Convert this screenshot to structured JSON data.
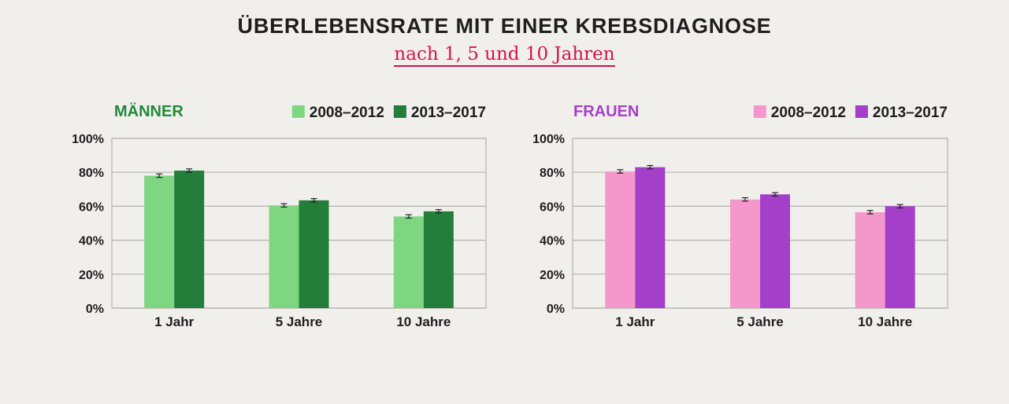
{
  "header": {
    "title": "ÜBERLEBENSRATE MIT EINER KREBSDIAGNOSE",
    "subtitle": "nach 1, 5 und 10 Jahren"
  },
  "chart_data": [
    {
      "type": "bar",
      "title": "MÄNNER",
      "title_color": "#218a3a",
      "categories": [
        "1 Jahr",
        "5 Jahre",
        "10 Jahre"
      ],
      "series": [
        {
          "name": "2008–2012",
          "color": "#7fd681",
          "values": [
            78,
            60.5,
            54
          ]
        },
        {
          "name": "2013–2017",
          "color": "#237e39",
          "values": [
            81,
            63.5,
            57
          ]
        }
      ],
      "error_margin": 1,
      "yticks": [
        "0%",
        "20%",
        "40%",
        "60%",
        "80%",
        "100%"
      ],
      "ylim": [
        0,
        100
      ],
      "grid": true,
      "legend": "top-right"
    },
    {
      "type": "bar",
      "title": "FRAUEN",
      "title_color": "#a63fc8",
      "categories": [
        "1 Jahr",
        "5 Jahre",
        "10 Jahre"
      ],
      "series": [
        {
          "name": "2008–2012",
          "color": "#f498cc",
          "values": [
            80.5,
            64,
            56.5
          ]
        },
        {
          "name": "2013–2017",
          "color": "#a33fc8",
          "values": [
            83,
            67,
            60
          ]
        }
      ],
      "error_margin": 1,
      "yticks": [
        "0%",
        "20%",
        "40%",
        "60%",
        "80%",
        "100%"
      ],
      "ylim": [
        0,
        100
      ],
      "grid": true,
      "legend": "top-right"
    }
  ]
}
